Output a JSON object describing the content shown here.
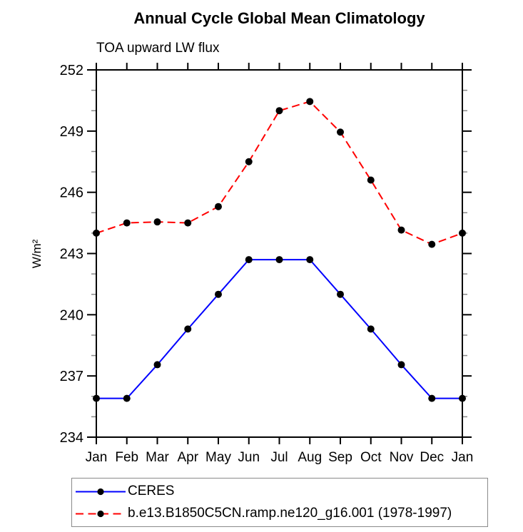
{
  "chart_data": {
    "type": "line",
    "title": "Annual Cycle Global Mean Climatology",
    "subtitle": "TOA upward LW flux",
    "ylabel": "W/m²",
    "categories": [
      "Jan",
      "Feb",
      "Mar",
      "Apr",
      "May",
      "Jun",
      "Jul",
      "Aug",
      "Sep",
      "Oct",
      "Nov",
      "Dec",
      "Jan"
    ],
    "ylim": [
      234,
      252
    ],
    "yticks": [
      234,
      237,
      240,
      243,
      246,
      249,
      252
    ],
    "ytick_minor_interval": 1,
    "grid": false,
    "legend_position": "bottom-left",
    "series": [
      {
        "name": "CERES",
        "color": "#0000ff",
        "line_style": "solid",
        "marker": "filled-black-circle",
        "marker_color": "#000000",
        "values": [
          235.9,
          235.9,
          237.55,
          239.3,
          241.0,
          242.7,
          242.7,
          242.7,
          241.0,
          239.3,
          237.55,
          235.9,
          235.9
        ]
      },
      {
        "name": "b.e13.B1850C5CN.ramp.ne120_g16.001 (1978-1997)",
        "color": "#ff0000",
        "line_style": "dashed",
        "marker": "filled-black-circle",
        "marker_color": "#000000",
        "values": [
          244.0,
          244.5,
          244.55,
          244.5,
          245.3,
          247.5,
          250.0,
          250.45,
          248.95,
          246.6,
          244.15,
          243.45,
          244.0
        ]
      }
    ]
  }
}
